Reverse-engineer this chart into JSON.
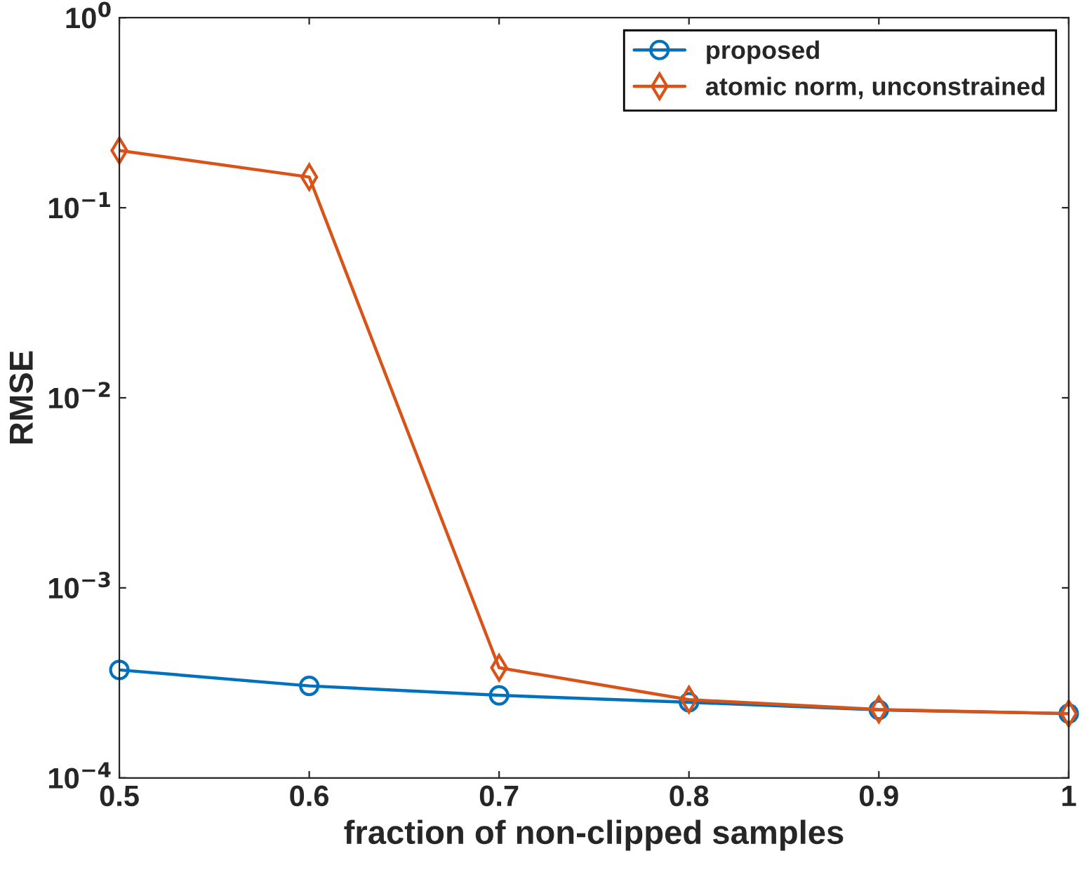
{
  "chart_data": {
    "type": "line",
    "xlabel": "fraction of non-clipped samples",
    "ylabel": "RMSE",
    "log": "y",
    "x": [
      0.5,
      0.6,
      0.7,
      0.8,
      0.9,
      1.0
    ],
    "series": [
      {
        "name": "proposed",
        "color": "#0072bd",
        "marker": "circle",
        "values": [
          0.00037,
          0.000305,
          0.000272,
          0.00025,
          0.000228,
          0.000218
        ]
      },
      {
        "name": "atomic norm, unconstrained",
        "color": "#d95319",
        "marker": "diamond",
        "values": [
          0.2,
          0.145,
          0.00038,
          0.000258,
          0.000229,
          0.000218
        ]
      }
    ],
    "xlim": [
      0.5,
      1.0
    ],
    "xticks": [
      0.5,
      0.6,
      0.7,
      0.8,
      0.9,
      1
    ],
    "ylim": [
      0.0001,
      1
    ],
    "yticks": [
      {
        "value": 0.0001,
        "label": "10$^{−4}$"
      },
      {
        "value": 0.001,
        "label": "10$^{−3}$"
      },
      {
        "value": 0.01,
        "label": "10$^{−2}$"
      },
      {
        "value": 0.1,
        "label": "10$^{−1}$"
      },
      {
        "value": 1,
        "label": "10$^{0}$"
      }
    ],
    "legend": "top right",
    "line_style": "solid"
  }
}
